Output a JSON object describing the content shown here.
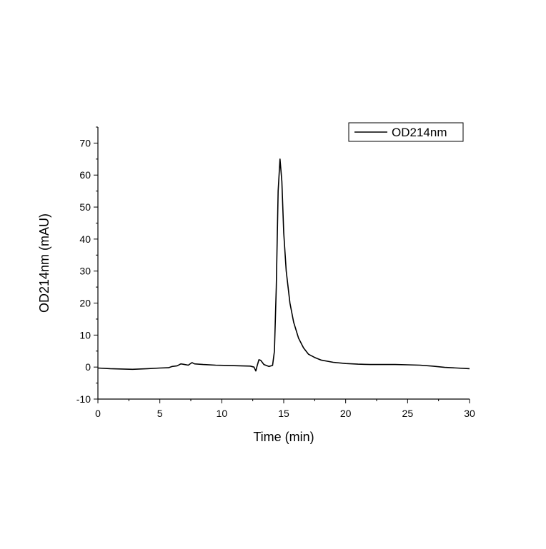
{
  "chart_data": {
    "type": "line",
    "xlabel": "Time (min)",
    "ylabel": "OD214nm (mAU)",
    "xlim": [
      0,
      30
    ],
    "ylim": [
      -10,
      75
    ],
    "xticks": [
      0,
      5,
      10,
      15,
      20,
      25,
      30
    ],
    "yticks": [
      -10,
      0,
      10,
      20,
      30,
      40,
      50,
      60,
      70
    ],
    "grid": false,
    "legend_position": "top-right",
    "series": [
      {
        "name": "OD214nm",
        "color": "#000000",
        "points": [
          [
            0,
            -0.3
          ],
          [
            1,
            -0.5
          ],
          [
            2,
            -0.6
          ],
          [
            2.8,
            -0.7
          ],
          [
            4,
            -0.5
          ],
          [
            5,
            -0.3
          ],
          [
            5.7,
            -0.2
          ],
          [
            6,
            0.2
          ],
          [
            6.4,
            0.4
          ],
          [
            6.7,
            1.0
          ],
          [
            7.0,
            0.8
          ],
          [
            7.3,
            0.6
          ],
          [
            7.6,
            1.4
          ],
          [
            7.8,
            1.0
          ],
          [
            8.5,
            0.8
          ],
          [
            9.5,
            0.6
          ],
          [
            10.5,
            0.5
          ],
          [
            11.5,
            0.4
          ],
          [
            12.3,
            0.3
          ],
          [
            12.6,
            0.0
          ],
          [
            12.75,
            -1.2
          ],
          [
            12.85,
            0.3
          ],
          [
            13.0,
            2.3
          ],
          [
            13.15,
            2.1
          ],
          [
            13.4,
            0.8
          ],
          [
            13.8,
            0.2
          ],
          [
            14.1,
            0.5
          ],
          [
            14.25,
            5
          ],
          [
            14.4,
            25
          ],
          [
            14.55,
            55
          ],
          [
            14.7,
            65
          ],
          [
            14.85,
            58
          ],
          [
            15.0,
            42
          ],
          [
            15.2,
            30
          ],
          [
            15.5,
            20
          ],
          [
            15.8,
            14
          ],
          [
            16.2,
            9
          ],
          [
            16.6,
            6
          ],
          [
            17.0,
            4
          ],
          [
            17.5,
            3
          ],
          [
            18.0,
            2.2
          ],
          [
            19.0,
            1.5
          ],
          [
            20.0,
            1.1
          ],
          [
            21.0,
            0.9
          ],
          [
            22.0,
            0.8
          ],
          [
            23.0,
            0.8
          ],
          [
            24.0,
            0.8
          ],
          [
            25.0,
            0.7
          ],
          [
            26.0,
            0.6
          ],
          [
            27.0,
            0.3
          ],
          [
            28.0,
            -0.1
          ],
          [
            29.0,
            -0.3
          ],
          [
            30.0,
            -0.5
          ]
        ]
      }
    ]
  }
}
